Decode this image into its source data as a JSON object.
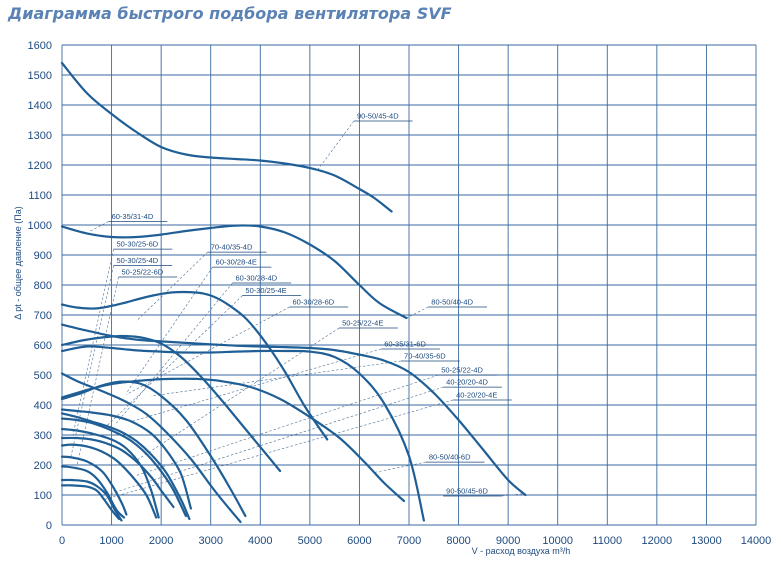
{
  "chart_data": {
    "type": "line",
    "title": "Диаграмма быстрого подбора вентилятора SVF",
    "xlabel": "V - расход воздуха m³/h",
    "ylabel": "Δ pt - общее давление (Па)",
    "xlim": [
      0,
      14000
    ],
    "ylim": [
      0,
      1600
    ],
    "x_ticks": [
      "0",
      "1000",
      "2000",
      "3000",
      "4000",
      "5000",
      "6000",
      "7000",
      "8000",
      "9000",
      "10000",
      "11000",
      "12000",
      "13000",
      "14000"
    ],
    "y_ticks": [
      "0",
      "100",
      "200",
      "300",
      "400",
      "500",
      "600",
      "700",
      "800",
      "900",
      "1000",
      "1100",
      "1200",
      "1300",
      "1400",
      "1500",
      "1600"
    ],
    "grid": true,
    "legend": "annotations",
    "series": [
      {
        "name": "90-50/45-4D",
        "x": [
          0,
          500,
          1000,
          1500,
          2000,
          2500,
          3000,
          3500,
          4000,
          4500,
          5000,
          5500,
          6000,
          6300,
          6650
        ],
        "y": [
          1540,
          1440,
          1370,
          1310,
          1260,
          1235,
          1225,
          1220,
          1215,
          1205,
          1190,
          1165,
          1120,
          1090,
          1045
        ]
      },
      {
        "name": "60-35/31-4D",
        "x": [
          0,
          500,
          1000,
          1500,
          2000,
          2500,
          3000,
          3500,
          4000,
          4500,
          5000,
          5500,
          6000,
          6400,
          6950
        ],
        "y": [
          995,
          972,
          960,
          960,
          968,
          980,
          990,
          998,
          995,
          975,
          935,
          880,
          800,
          740,
          690
        ]
      },
      {
        "name": "80-50/40-4D",
        "x": [
          0,
          300,
          700,
          1200,
          1700,
          2200,
          2700,
          3000,
          3300,
          3700,
          4100,
          4500,
          4900,
          5350
        ],
        "y": [
          735,
          725,
          722,
          738,
          760,
          775,
          775,
          765,
          740,
          690,
          610,
          510,
          395,
          285
        ]
      },
      {
        "name": "60-30/28-6D",
        "x": [
          0,
          500,
          1000,
          1500,
          2000,
          2500,
          3000,
          3500,
          4000,
          4500,
          5000,
          5500,
          6000,
          6500,
          7000,
          7300
        ],
        "y": [
          580,
          595,
          590,
          582,
          578,
          575,
          575,
          578,
          580,
          580,
          578,
          560,
          505,
          405,
          230,
          15
        ]
      },
      {
        "name": "90-50/45-6D",
        "x": [
          0,
          500,
          1000,
          1500,
          2000,
          2500,
          3000,
          3500,
          4000,
          4500,
          5000,
          5500,
          6000,
          6500,
          7000,
          7500,
          8000,
          8500,
          9000,
          9350
        ],
        "y": [
          668,
          648,
          630,
          618,
          612,
          607,
          602,
          598,
          595,
          593,
          590,
          583,
          568,
          548,
          510,
          440,
          350,
          250,
          150,
          100
        ]
      },
      {
        "name": "80-50/40-6D",
        "x": [
          0,
          500,
          1000,
          1500,
          1800,
          2200,
          2700,
          3200,
          3800,
          4400,
          5000,
          5600,
          6100,
          6500,
          6900
        ],
        "y": [
          425,
          450,
          470,
          480,
          484,
          487,
          487,
          480,
          460,
          420,
          360,
          290,
          210,
          140,
          80
        ]
      },
      {
        "name": "70-40/35-4D",
        "x": [
          0,
          400,
          800,
          1200,
          1600,
          2000,
          2400,
          2800,
          3200,
          3700,
          4400
        ],
        "y": [
          600,
          615,
          625,
          630,
          625,
          605,
          560,
          495,
          420,
          320,
          180
        ]
      },
      {
        "name": "70-40/35-6D",
        "x": [
          0,
          400,
          800,
          1200,
          1600,
          2000,
          2500,
          3000,
          3400,
          3700
        ],
        "y": [
          420,
          440,
          465,
          478,
          470,
          430,
          350,
          230,
          120,
          30
        ]
      },
      {
        "name": "60-30/28-4E",
        "x": [
          0,
          300,
          600,
          900,
          1300,
          1700,
          2100,
          2600,
          3100,
          3600
        ],
        "y": [
          505,
          480,
          460,
          440,
          410,
          370,
          310,
          220,
          110,
          10
        ]
      },
      {
        "name": "60-35/31-6D",
        "x": [
          0,
          300,
          600,
          1000,
          1400,
          1800,
          2100,
          2400,
          2600
        ],
        "y": [
          385,
          380,
          375,
          365,
          345,
          305,
          250,
          170,
          55
        ]
      },
      {
        "name": "60-30/28-4D",
        "x": [
          0,
          300,
          600,
          1000,
          1400,
          1800,
          2200,
          2500
        ],
        "y": [
          355,
          350,
          340,
          315,
          280,
          220,
          130,
          30
        ]
      },
      {
        "name": "50-30/25-6D",
        "x": [
          0,
          300,
          600,
          1000,
          1300,
          1600,
          1800,
          1950
        ],
        "y": [
          320,
          315,
          305,
          285,
          255,
          195,
          115,
          25
        ]
      },
      {
        "name": "50-30/25-4E",
        "x": [
          0,
          300,
          600,
          900,
          1200,
          1500,
          1800,
          2100,
          2400,
          2570
        ],
        "y": [
          372,
          360,
          345,
          330,
          310,
          280,
          235,
          175,
          85,
          20
        ]
      },
      {
        "name": "50-25/22-4E",
        "x": [
          0,
          300,
          600,
          900,
          1200,
          1500,
          1800,
          2000,
          2250
        ],
        "y": [
          290,
          290,
          285,
          272,
          250,
          212,
          160,
          115,
          60
        ]
      },
      {
        "name": "50-25/22-4D",
        "x": [
          0,
          200,
          500,
          800,
          1100,
          1400,
          1700,
          1900
        ],
        "y": [
          265,
          268,
          262,
          245,
          215,
          165,
          100,
          25
        ]
      },
      {
        "name": "50-30/25-4D",
        "x": [
          0,
          200,
          500,
          800,
          1000,
          1200,
          1300
        ],
        "y": [
          228,
          225,
          212,
          180,
          135,
          75,
          35
        ]
      },
      {
        "name": "50-25/22-6D",
        "x": [
          0,
          200,
          500,
          700,
          900,
          1100,
          1250
        ],
        "y": [
          195,
          192,
          180,
          155,
          110,
          50,
          25
        ]
      },
      {
        "name": "40-20/20-4D",
        "x": [
          0,
          200,
          500,
          700,
          900,
          1050,
          1200
        ],
        "y": [
          150,
          150,
          145,
          130,
          100,
          55,
          15
        ]
      },
      {
        "name": "40-20/20-4E",
        "x": [
          0,
          200,
          500,
          700,
          850,
          1000,
          1150
        ],
        "y": [
          132,
          132,
          128,
          115,
          85,
          50,
          20
        ]
      }
    ],
    "labels": [
      {
        "text": "90-50/45-4D",
        "x": 5950,
        "y": 1355,
        "to": [
          5150,
          1182
        ]
      },
      {
        "text": "60-35/31-4D",
        "x": 1000,
        "y": 1020,
        "to": [
          550,
          978
        ]
      },
      {
        "text": "50-30/25-6D",
        "x": 1100,
        "y": 928,
        "to": [
          220,
          300
        ]
      },
      {
        "text": "50-30/25-4D",
        "x": 1100,
        "y": 873,
        "to": [
          180,
          228
        ]
      },
      {
        "text": "50-25/22-6D",
        "x": 1200,
        "y": 835,
        "to": [
          300,
          195
        ]
      },
      {
        "text": "70-40/35-4D",
        "x": 3000,
        "y": 918,
        "to": [
          1500,
          680
        ]
      },
      {
        "text": "60-30/28-4E",
        "x": 3100,
        "y": 868,
        "to": [
          1300,
          440
        ]
      },
      {
        "text": "60-30/28-4D",
        "x": 3500,
        "y": 815,
        "to": [
          1100,
          340
        ]
      },
      {
        "text": "50-30/25-4E",
        "x": 3700,
        "y": 773,
        "to": [
          900,
          330
        ]
      },
      {
        "text": "60-30/28-6D",
        "x": 4650,
        "y": 735,
        "to": [
          1300,
          435
        ]
      },
      {
        "text": "80-50/40-4D",
        "x": 7450,
        "y": 735,
        "to": [
          6950,
          690
        ]
      },
      {
        "text": "50-25/22-4E",
        "x": 5650,
        "y": 665,
        "to": [
          1500,
          215
        ]
      },
      {
        "text": "60-35/31-6D",
        "x": 6500,
        "y": 595,
        "to": [
          1400,
          345
        ]
      },
      {
        "text": "70-40/35-6D",
        "x": 6900,
        "y": 555,
        "to": [
          1800,
          430
        ]
      },
      {
        "text": "50-25/22-4D",
        "x": 7650,
        "y": 508,
        "to": [
          1500,
          165
        ]
      },
      {
        "text": "40-20/20-4D",
        "x": 7750,
        "y": 468,
        "to": [
          900,
          100
        ]
      },
      {
        "text": "40-20/20-4E",
        "x": 7950,
        "y": 425,
        "to": [
          850,
          85
        ]
      },
      {
        "text": "80-50/40-6D",
        "x": 7400,
        "y": 218,
        "to": [
          6300,
          175
        ]
      },
      {
        "text": "90-50/45-6D",
        "x": 7750,
        "y": 105,
        "to": [
          9350,
          105
        ]
      }
    ]
  }
}
